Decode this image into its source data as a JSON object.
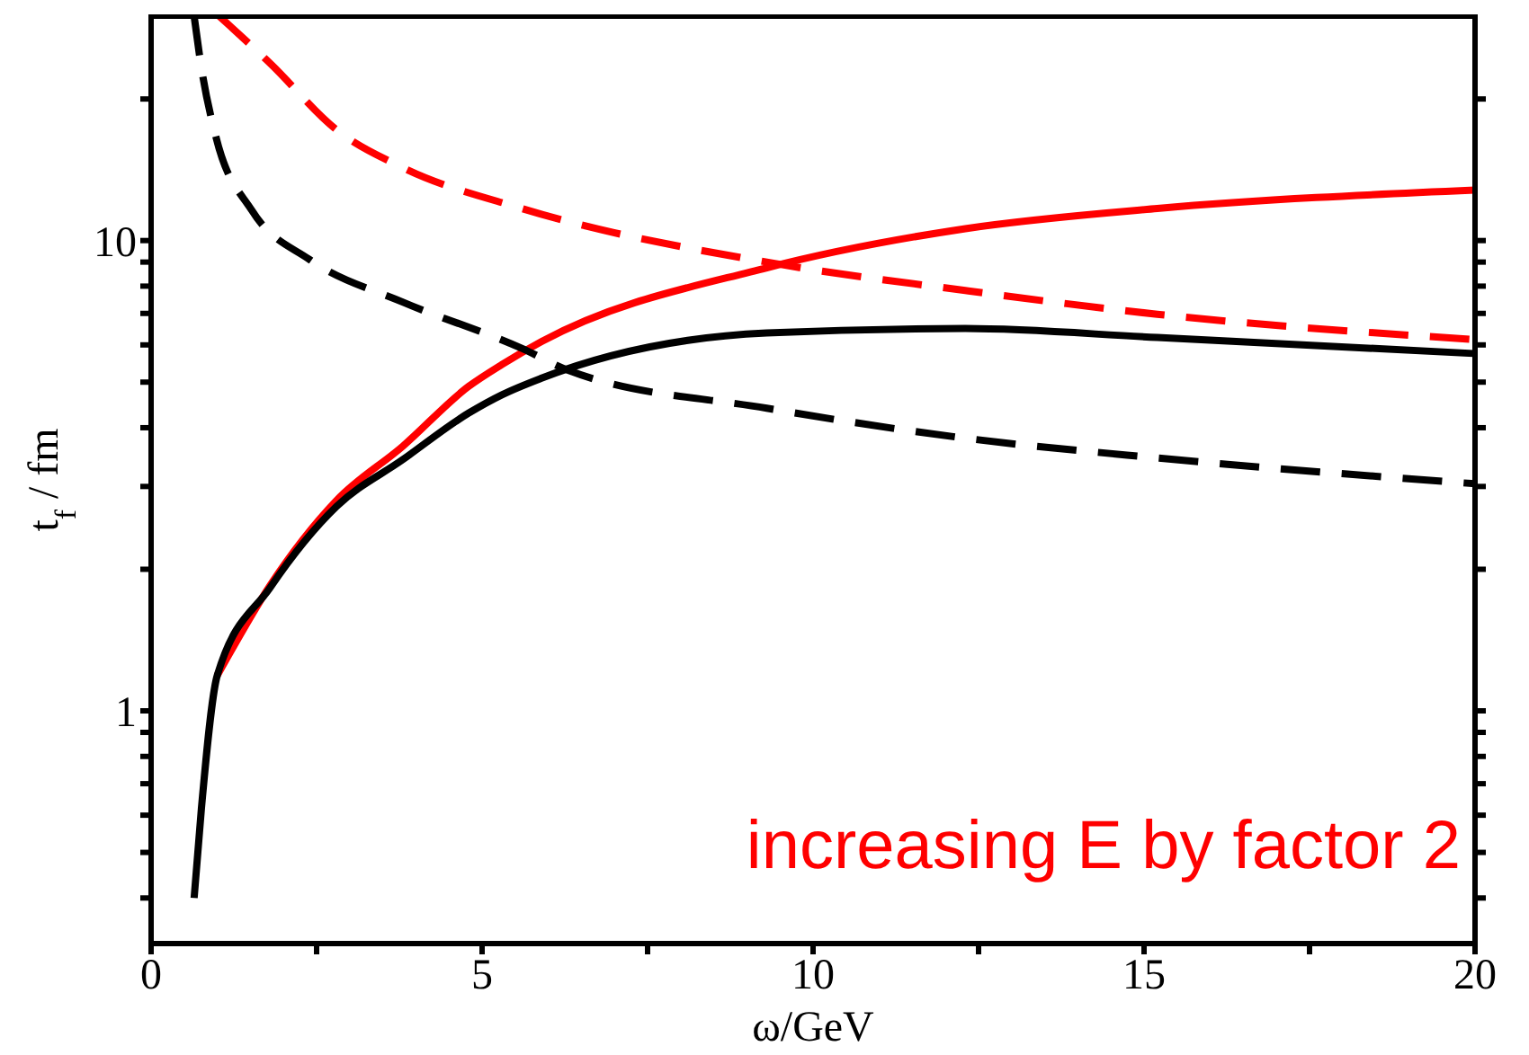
{
  "chart_data": {
    "type": "line",
    "xlabel": "ω/GeV",
    "ylabel": "t$_{f}$ / fm",
    "log": "y",
    "xlim": [
      0,
      20
    ],
    "xticks": [
      0,
      {
        "value": 2.5,
        "label": null
      },
      5,
      {
        "value": 7.5,
        "label": null
      },
      10,
      {
        "value": 12.5,
        "label": null
      },
      15,
      {
        "value": 17.5,
        "label": null
      },
      20
    ],
    "ylim": [
      0.32,
      30
    ],
    "yticks": [
      {
        "value": 0.4,
        "label": null
      },
      {
        "value": 0.5,
        "label": null
      },
      {
        "value": 0.6,
        "label": null
      },
      {
        "value": 0.7,
        "label": null
      },
      {
        "value": 0.8,
        "label": null
      },
      {
        "value": 0.9,
        "label": null
      },
      1,
      {
        "value": 2,
        "label": null
      },
      {
        "value": 3,
        "label": null
      },
      {
        "value": 4,
        "label": null
      },
      {
        "value": 5,
        "label": null
      },
      {
        "value": 6,
        "label": null
      },
      {
        "value": 7,
        "label": null
      },
      {
        "value": 8,
        "label": null
      },
      {
        "value": 9,
        "label": null
      },
      10,
      {
        "value": 20,
        "label": null
      }
    ],
    "grid": false,
    "legend": false,
    "marker": "none",
    "series": [
      {
        "color": "#ff0000",
        "line_style": "solid",
        "x": [
          1.0,
          1.8,
          2.8,
          3.8,
          4.8,
          5.3,
          5.9,
          9.3,
          12.3,
          15.2,
          20
        ],
        "values": [
          1.19,
          1.85,
          2.8,
          3.65,
          4.9,
          5.45,
          6.1,
          8.75,
          10.6,
          11.7,
          12.8
        ]
      },
      {
        "color": "#000000",
        "line_style": "solid",
        "x": [
          0.65,
          0.76,
          1.0,
          1.8,
          2.8,
          3.8,
          4.8,
          5.3,
          5.9,
          9.3,
          12.3,
          15.2,
          20
        ],
        "values": [
          0.4,
          0.62,
          1.19,
          1.83,
          2.72,
          3.42,
          4.3,
          4.7,
          5.1,
          6.36,
          6.5,
          6.22,
          5.75
        ]
      },
      {
        "color": "#ff0000",
        "line_style": "dashed",
        "x": [
          1.03,
          1.8,
          2.8,
          3.8,
          5.6,
          9.5,
          12.3,
          15.2,
          20
        ],
        "values": [
          30,
          23.8,
          17.2,
          14.3,
          11.7,
          8.9,
          7.83,
          6.97,
          6.16
        ]
      },
      {
        "color": "#000000",
        "line_style": "dashed",
        "x": [
          0.65,
          0.76,
          0.98,
          1.52,
          2.4,
          3.8,
          5.6,
          6.3,
          9.3,
          12.3,
          15.2,
          20
        ],
        "values": [
          30,
          23.3,
          16.6,
          11.6,
          9.1,
          7.4,
          5.9,
          5.3,
          4.4,
          3.8,
          3.45,
          3.04
        ]
      }
    ],
    "annotations": [
      "increasing E by factor 2"
    ]
  }
}
